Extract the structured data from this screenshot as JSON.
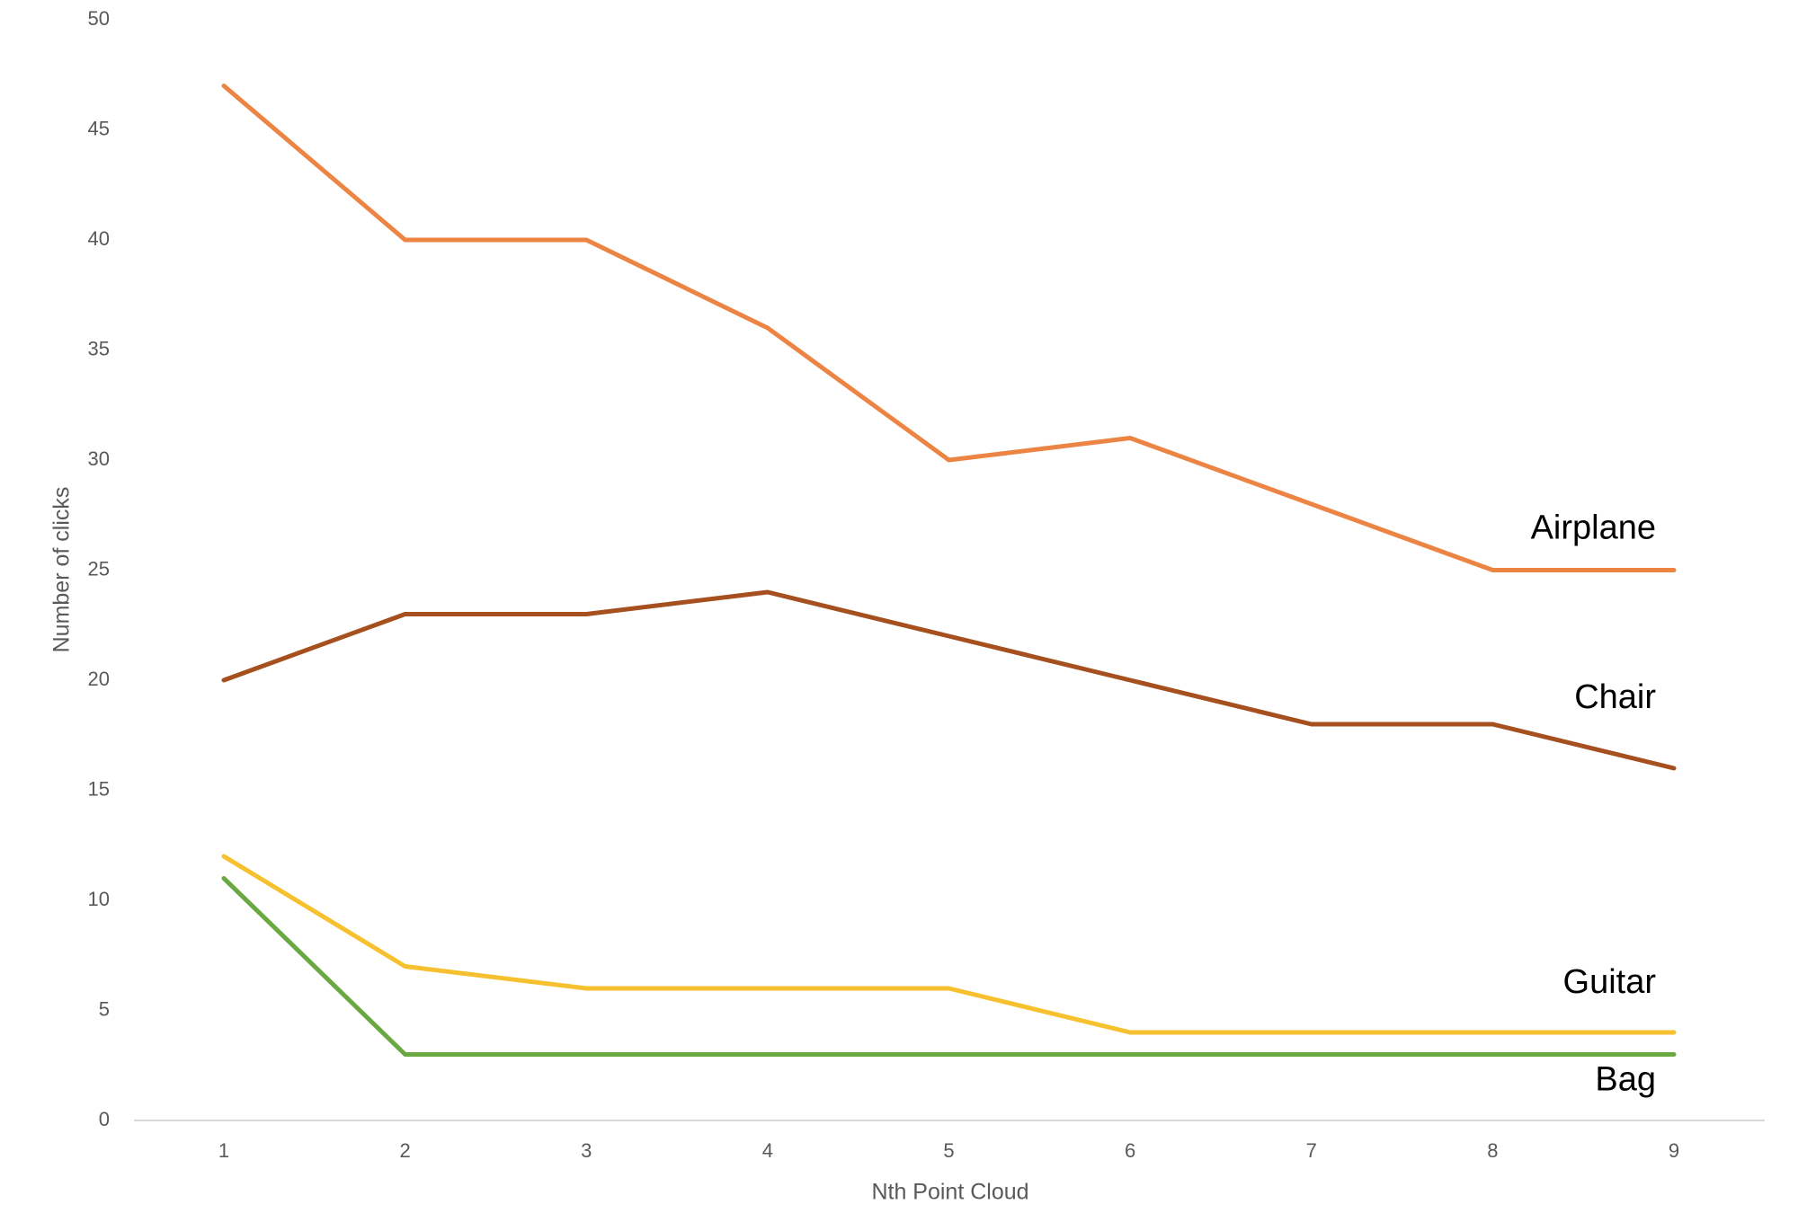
{
  "chart_data": {
    "type": "line",
    "xlabel": "Nth Point Cloud",
    "ylabel": "Number of clicks",
    "categories": [
      "1",
      "2",
      "3",
      "4",
      "5",
      "6",
      "7",
      "8",
      "9"
    ],
    "series": [
      {
        "name": "Airplane",
        "color": "#ec8443",
        "values": [
          47,
          40,
          40,
          36,
          30,
          31,
          28,
          25,
          25
        ]
      },
      {
        "name": "Chair",
        "color": "#a5501e",
        "values": [
          20,
          23,
          23,
          24,
          22,
          20,
          18,
          18,
          16
        ]
      },
      {
        "name": "Guitar",
        "color": "#f6c02e",
        "values": [
          12,
          7,
          6,
          6,
          6,
          4,
          4,
          4,
          4
        ]
      },
      {
        "name": "Bag",
        "color": "#6aa842",
        "values": [
          11,
          3,
          3,
          3,
          3,
          3,
          3,
          3,
          3
        ]
      }
    ],
    "ylim": [
      0,
      50
    ],
    "yticks": [
      0,
      5,
      10,
      15,
      20,
      25,
      30,
      35,
      40,
      45,
      50
    ],
    "grid": false
  }
}
